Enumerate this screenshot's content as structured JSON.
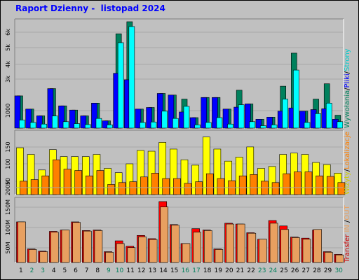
{
  "title": "Raport Dzienny -  listopad 2024",
  "colors": {
    "background": "#c0c0c0",
    "title": "#0000ff",
    "hits": "#00805c",
    "files": "#0000ff",
    "pages": "#00ffff",
    "visits": "#ffff00",
    "sites": "#ff8000",
    "kbytes": "#ff0000",
    "kbytes_light": "#e8a060",
    "weekday_label": "#000000",
    "weekend_label": "#00805c"
  },
  "right_labels": {
    "top": [
      {
        "text": "Wywołania",
        "color": "#00805c"
      },
      {
        "text": "/",
        "color": "#000000"
      },
      {
        "text": "Pliki",
        "color": "#0000ff"
      },
      {
        "text": "/",
        "color": "#000000"
      },
      {
        "text": "Strony",
        "color": "#00cccc"
      }
    ],
    "middle": [
      {
        "text": "Wizyty",
        "color": "#cccc00"
      },
      {
        "text": "/",
        "color": "#000000"
      },
      {
        "text": "Lokalizacje",
        "color": "#ff8000"
      }
    ],
    "bottom": [
      {
        "text": "Transfer",
        "color": "#cc0000"
      },
      {
        "text": " IN ",
        "color": "#e8a060"
      },
      {
        "text": "/",
        "color": "#000000"
      },
      {
        "text": "OUT",
        "color": "#e8a060"
      }
    ]
  },
  "chart_data": [
    {
      "type": "bar",
      "panel": "top",
      "categories": [
        "1",
        "2",
        "3",
        "4",
        "5",
        "6",
        "7",
        "8",
        "9",
        "10",
        "11",
        "12",
        "13",
        "14",
        "15",
        "16",
        "17",
        "18",
        "19",
        "20",
        "21",
        "22",
        "23",
        "24",
        "25",
        "26",
        "27",
        "28",
        "29",
        "30"
      ],
      "weekend_days": [
        "2",
        "3",
        "9",
        "10",
        "16",
        "17",
        "23",
        "24",
        "30"
      ],
      "yticks": [
        "1000",
        "3k",
        "4k",
        "5k",
        "6k"
      ],
      "ylim": [
        0,
        6600
      ],
      "series": [
        {
          "values": [
            2000,
            1180,
            760,
            2450,
            1380,
            1120,
            760,
            1550,
            450,
            5850,
            6600,
            1180,
            1280,
            2150,
            2050,
            1800,
            650,
            1900,
            1900,
            1180,
            2350,
            1500,
            550,
            680,
            2600,
            4650,
            1050,
            1800,
            2750,
            800
          ]
        },
        {
          "values": [
            2000,
            1180,
            760,
            2450,
            1380,
            1120,
            760,
            1550,
            450,
            3400,
            3000,
            1180,
            1280,
            2150,
            2050,
            1000,
            650,
            1900,
            1900,
            1180,
            1300,
            1500,
            550,
            680,
            1050,
            1250,
            1050,
            1150,
            1200,
            550
          ]
        },
        {
          "values": [
            500,
            350,
            250,
            750,
            400,
            280,
            220,
            600,
            200,
            5300,
            6300,
            350,
            380,
            1050,
            600,
            1350,
            200,
            350,
            650,
            250,
            1450,
            400,
            150,
            200,
            1800,
            3600,
            350,
            900,
            1550,
            400
          ]
        }
      ]
    },
    {
      "type": "bar",
      "panel": "middle",
      "categories": [
        "1",
        "2",
        "3",
        "4",
        "5",
        "6",
        "7",
        "8",
        "9",
        "10",
        "11",
        "12",
        "13",
        "14",
        "15",
        "16",
        "17",
        "18",
        "19",
        "20",
        "21",
        "22",
        "23",
        "24",
        "25",
        "26",
        "27",
        "28",
        "29",
        "30"
      ],
      "yticks": [
        "50",
        "100",
        "150"
      ],
      "ylim": [
        0,
        230
      ],
      "series": [
        {
          "values": [
            175,
            150,
            92,
            168,
            142,
            142,
            142,
            150,
            98,
            82,
            115,
            165,
            162,
            195,
            170,
            130,
            110,
            215,
            170,
            125,
            140,
            178,
            98,
            105,
            150,
            155,
            150,
            120,
            112,
            80
          ]
        },
        {
          "values": [
            50,
            56,
            70,
            130,
            95,
            90,
            70,
            90,
            38,
            45,
            48,
            66,
            80,
            60,
            60,
            42,
            48,
            78,
            60,
            52,
            70,
            75,
            50,
            45,
            78,
            85,
            85,
            70,
            68,
            45
          ]
        }
      ]
    },
    {
      "type": "bar",
      "panel": "bottom",
      "categories": [
        "1",
        "2",
        "3",
        "4",
        "5",
        "6",
        "7",
        "8",
        "9",
        "10",
        "11",
        "12",
        "13",
        "14",
        "15",
        "16",
        "17",
        "18",
        "19",
        "20",
        "21",
        "22",
        "23",
        "24",
        "25",
        "26",
        "27",
        "28",
        "29",
        "30"
      ],
      "yticks": [
        "50M",
        "100M",
        "150M",
        "200M"
      ],
      "ylim": [
        0,
        230
      ],
      "series": [
        {
          "values": [
            150,
            50,
            42,
            115,
            120,
            150,
            118,
            120,
            40,
            80,
            60,
            100,
            88,
            225,
            140,
            70,
            125,
            120,
            50,
            145,
            142,
            110,
            86,
            155,
            135,
            94,
            90,
            120,
            40,
            30
          ]
        },
        {
          "values": [
            150,
            48,
            40,
            112,
            120,
            148,
            116,
            118,
            38,
            70,
            55,
            95,
            85,
            205,
            138,
            70,
            112,
            118,
            48,
            142,
            142,
            108,
            86,
            145,
            122,
            92,
            86,
            122,
            38,
            28
          ]
        }
      ]
    }
  ]
}
